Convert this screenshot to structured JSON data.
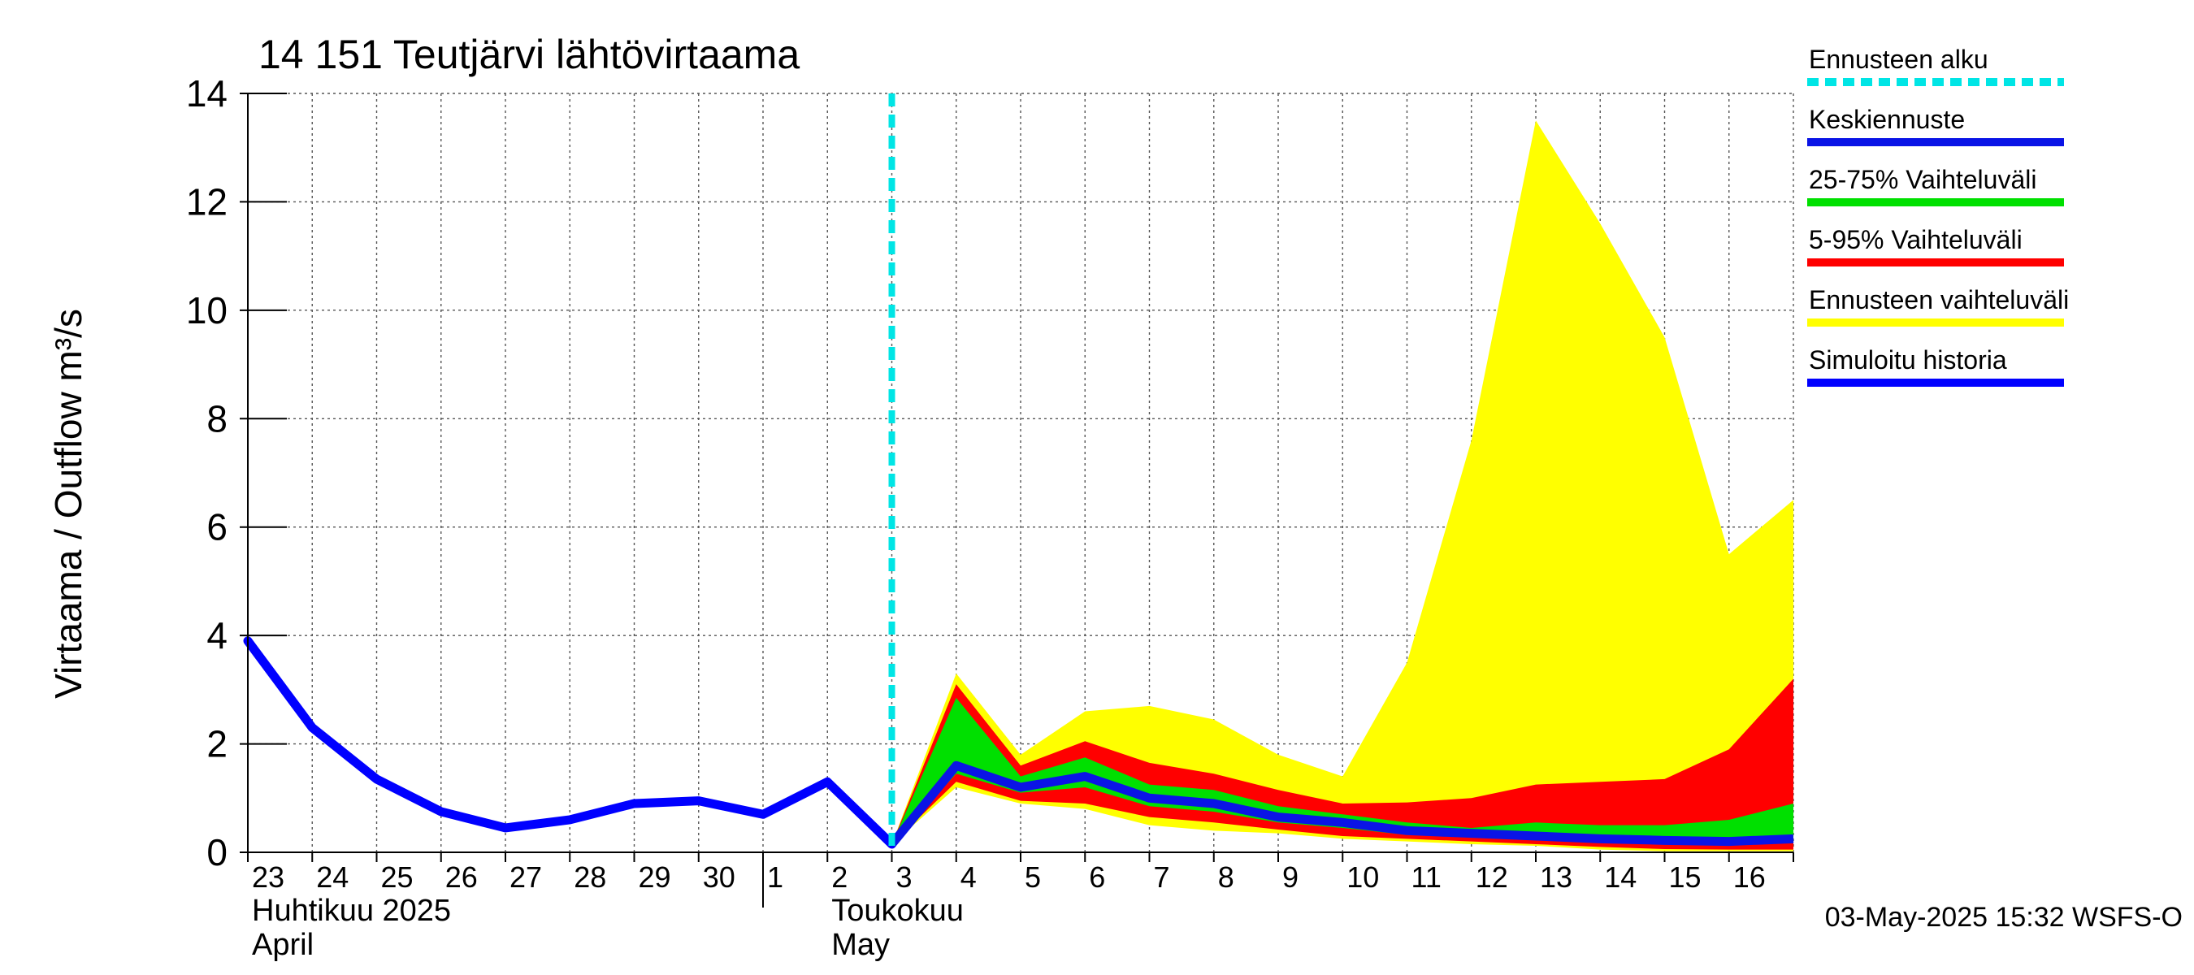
{
  "chart_data": {
    "type": "area",
    "title": "14 151 Teutjärvi lähtövirtaama",
    "ylabel": "Virtaama / Outflow    m³/s",
    "ylim": [
      0,
      14
    ],
    "yticks": [
      0,
      2,
      4,
      6,
      8,
      10,
      12,
      14
    ],
    "x_start_day": 23,
    "x_end_day": 47,
    "day_labels": [
      {
        "day": 23,
        "label": "23"
      },
      {
        "day": 24,
        "label": "24"
      },
      {
        "day": 25,
        "label": "25"
      },
      {
        "day": 26,
        "label": "26"
      },
      {
        "day": 27,
        "label": "27"
      },
      {
        "day": 28,
        "label": "28"
      },
      {
        "day": 29,
        "label": "29"
      },
      {
        "day": 30,
        "label": "30"
      },
      {
        "day": 31,
        "label": "1"
      },
      {
        "day": 32,
        "label": "2"
      },
      {
        "day": 33,
        "label": "3"
      },
      {
        "day": 34,
        "label": "4"
      },
      {
        "day": 35,
        "label": "5"
      },
      {
        "day": 36,
        "label": "6"
      },
      {
        "day": 37,
        "label": "7"
      },
      {
        "day": 38,
        "label": "8"
      },
      {
        "day": 39,
        "label": "9"
      },
      {
        "day": 40,
        "label": "10"
      },
      {
        "day": 41,
        "label": "11"
      },
      {
        "day": 42,
        "label": "12"
      },
      {
        "day": 43,
        "label": "13"
      },
      {
        "day": 44,
        "label": "14"
      },
      {
        "day": 45,
        "label": "15"
      },
      {
        "day": 46,
        "label": "16"
      }
    ],
    "month_labels": [
      {
        "day": 23,
        "line1": "Huhtikuu  2025",
        "line2": "April"
      },
      {
        "day": 32,
        "line1": "Toukokuu",
        "line2": "May"
      }
    ],
    "month_separator_day": 31,
    "forecast_start_day": 33,
    "history": {
      "x": [
        23,
        24,
        25,
        26,
        27,
        28,
        29,
        30,
        31,
        32,
        33
      ],
      "y": [
        3.9,
        2.3,
        1.35,
        0.75,
        0.45,
        0.6,
        0.9,
        0.95,
        0.7,
        1.3,
        0.15
      ]
    },
    "forecast_x": [
      33,
      34,
      35,
      36,
      37,
      38,
      39,
      40,
      41,
      42,
      43,
      44,
      45,
      46,
      47
    ],
    "range_min": [
      0.15,
      1.2,
      0.9,
      0.8,
      0.5,
      0.4,
      0.35,
      0.25,
      0.2,
      0.15,
      0.12,
      0.05,
      0.02,
      0.02,
      0.02
    ],
    "range_max": [
      0.15,
      3.3,
      1.8,
      2.6,
      2.7,
      2.45,
      1.8,
      1.4,
      3.5,
      7.6,
      13.5,
      11.6,
      9.5,
      5.5,
      6.5
    ],
    "p5": [
      0.15,
      1.3,
      0.95,
      0.9,
      0.65,
      0.55,
      0.42,
      0.3,
      0.25,
      0.2,
      0.15,
      0.1,
      0.06,
      0.05,
      0.05
    ],
    "p95": [
      0.15,
      3.1,
      1.6,
      2.05,
      1.65,
      1.45,
      1.15,
      0.9,
      0.92,
      1.0,
      1.25,
      1.3,
      1.35,
      1.9,
      3.2
    ],
    "p25": [
      0.15,
      1.45,
      1.1,
      1.2,
      0.85,
      0.75,
      0.55,
      0.45,
      0.32,
      0.28,
      0.25,
      0.2,
      0.18,
      0.16,
      0.2
    ],
    "p75": [
      0.15,
      2.85,
      1.4,
      1.75,
      1.25,
      1.15,
      0.85,
      0.7,
      0.55,
      0.45,
      0.55,
      0.5,
      0.5,
      0.6,
      0.9
    ],
    "median": [
      0.15,
      1.6,
      1.2,
      1.4,
      1.0,
      0.9,
      0.65,
      0.55,
      0.4,
      0.35,
      0.3,
      0.25,
      0.22,
      0.2,
      0.25
    ],
    "legend": [
      {
        "label": "Ennusteen alku",
        "color": "#00e5e5",
        "style": "dashed"
      },
      {
        "label": "Keskiennuste",
        "color": "#0a14e6",
        "style": "solid"
      },
      {
        "label": "25-75% Vaihteluväli",
        "color": "#00e000",
        "style": "solid"
      },
      {
        "label": "5-95% Vaihteluväli",
        "color": "#ff0000",
        "style": "solid"
      },
      {
        "label": "Ennusteen vaihteluväli",
        "color": "#ffff00",
        "style": "solid"
      },
      {
        "label": "Simuloitu historia",
        "color": "#0000ff",
        "style": "solid"
      }
    ],
    "colors": {
      "yellow": "#ffff00",
      "red": "#ff0000",
      "green": "#00e000",
      "blue": "#0a14e6",
      "history": "#0000ff",
      "cyan": "#00e5e5"
    },
    "timestamp": "03-May-2025 15:32 WSFS-O"
  }
}
